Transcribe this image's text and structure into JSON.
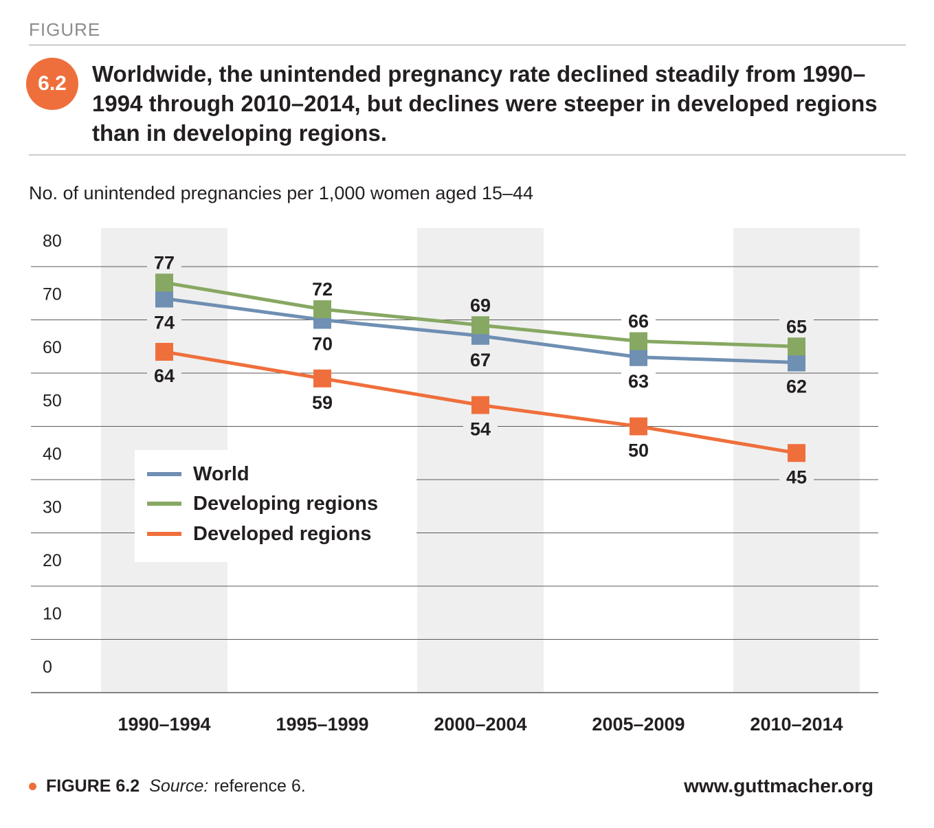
{
  "header": {
    "figure_label": "FIGURE",
    "badge": "6.2",
    "title": "Worldwide, the unintended pregnancy rate declined steadily from 1990–1994 through 2010–2014, but declines were steeper in developed regions than in developing regions."
  },
  "chart_data": {
    "type": "line",
    "title": "Worldwide, the unintended pregnancy rate declined steadily from 1990–1994 through 2010–2014, but declines were steeper in developed regions than in developing regions.",
    "ylabel": "No. of unintended pregnancies per 1,000 women aged 15–44",
    "xlabel": "",
    "categories": [
      "1990–1994",
      "1995–1999",
      "2000–2004",
      "2005–2009",
      "2010–2014"
    ],
    "yticks": [
      0,
      10,
      20,
      30,
      40,
      50,
      60,
      70,
      80
    ],
    "ylim": [
      0,
      85
    ],
    "grid": true,
    "legend_position": "center-left",
    "series": [
      {
        "name": "World",
        "color": "#6f8fb3",
        "values": [
          74,
          70,
          67,
          63,
          62
        ]
      },
      {
        "name": "Developing regions",
        "color": "#87a862",
        "values": [
          77,
          72,
          69,
          66,
          65
        ]
      },
      {
        "name": "Developed regions",
        "color": "#ef6f3c",
        "values": [
          64,
          59,
          54,
          50,
          45
        ]
      }
    ]
  },
  "footer": {
    "figure": "FIGURE 6.2",
    "source_label": "Source:",
    "source_text": "reference 6.",
    "website": "www.guttmacher.org"
  },
  "colors": {
    "accent": "#ef6f3c",
    "band": "#efefef",
    "gridline": "#5a5a5a"
  }
}
